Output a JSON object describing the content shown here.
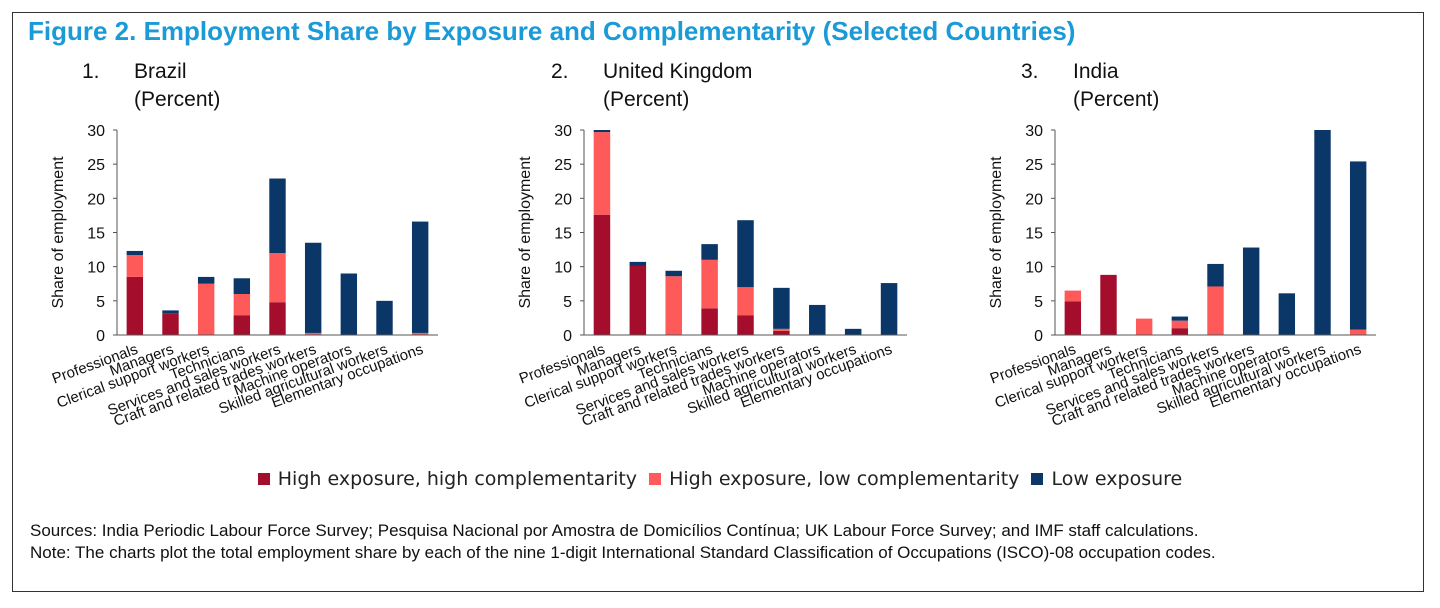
{
  "figure": {
    "title": "Figure 2. Employment Share by Exposure and Complementarity (Selected Countries)",
    "sources": "Sources: India Periodic Labour Force Survey; Pesquisa Nacional por Amostra de Domicílios Contínua; UK Labour Force Survey; and IMF staff calculations.",
    "note": "Note: The charts plot the total employment share by each of the nine 1-digit International Standard Classification of Occupations (ISCO)-08 occupation codes."
  },
  "colors": {
    "high_high": "#a50d2c",
    "high_low": "#ff5a5a",
    "low": "#0b3768"
  },
  "legend": [
    {
      "label": "High exposure, high complementarity",
      "color": "#a50d2c"
    },
    {
      "label": "High exposure, low complementarity",
      "color": "#ff5a5a"
    },
    {
      "label": "Low exposure",
      "color": "#0b3768"
    }
  ],
  "chart_data": [
    {
      "type": "bar",
      "stacked": true,
      "number": "1.",
      "title": "Brazil",
      "subtitle": "(Percent)",
      "ylabel": "Share of employment",
      "ylim": [
        0,
        30
      ],
      "yticks": [
        0,
        5,
        10,
        15,
        20,
        25,
        30
      ],
      "categories": [
        "Professionals",
        "Managers",
        "Clerical support workers",
        "Technicians",
        "Services and sales workers",
        "Craft and related trades workers",
        "Machine operators",
        "Skilled agricultural workers",
        "Elementary occupations"
      ],
      "series": [
        {
          "name": "High exposure, high complementarity",
          "values": [
            8.5,
            3.2,
            0,
            2.9,
            4.8,
            0,
            0,
            0,
            0
          ]
        },
        {
          "name": "High exposure, low complementarity",
          "values": [
            3.2,
            0,
            7.5,
            3.1,
            7.2,
            0.3,
            0,
            0,
            0.3
          ]
        },
        {
          "name": "Low exposure",
          "values": [
            0.6,
            0.4,
            1.0,
            2.3,
            10.9,
            13.2,
            9.0,
            5.0,
            16.3
          ]
        }
      ]
    },
    {
      "type": "bar",
      "stacked": true,
      "number": "2.",
      "title": "United Kingdom",
      "subtitle": "(Percent)",
      "ylabel": "Share of employment",
      "ylim": [
        0,
        30
      ],
      "yticks": [
        0,
        5,
        10,
        15,
        20,
        25,
        30
      ],
      "categories": [
        "Professionals",
        "Managers",
        "Clerical support workers",
        "Technicians",
        "Services and sales workers",
        "Craft and related trades workers",
        "Machine operators",
        "Skilled agricultural workers",
        "Elementary occupations"
      ],
      "series": [
        {
          "name": "High exposure, high complementarity",
          "values": [
            17.6,
            10.1,
            0,
            3.9,
            2.9,
            0.6,
            0,
            0,
            0
          ]
        },
        {
          "name": "High exposure, low complementarity",
          "values": [
            12.1,
            0,
            8.6,
            7.1,
            4.1,
            0.3,
            0,
            0,
            0
          ]
        },
        {
          "name": "Low exposure",
          "values": [
            0.3,
            0.6,
            0.8,
            2.3,
            9.8,
            6.0,
            4.4,
            0.9,
            7.6
          ]
        }
      ]
    },
    {
      "type": "bar",
      "stacked": true,
      "number": "3.",
      "title": "India",
      "subtitle": "(Percent)",
      "ylabel": "Share of employment",
      "ylim": [
        0,
        30
      ],
      "yticks": [
        0,
        5,
        10,
        15,
        20,
        25,
        30
      ],
      "categories": [
        "Professionals",
        "Managers",
        "Clerical support workers",
        "Technicians",
        "Services and sales workers",
        "Craft and related trades workers",
        "Machine operators",
        "Skilled agricultural workers",
        "Elementary occupations"
      ],
      "series": [
        {
          "name": "High exposure, high complementarity",
          "values": [
            4.9,
            8.8,
            0,
            1.0,
            0,
            0,
            0,
            0,
            0
          ]
        },
        {
          "name": "High exposure, low complementarity",
          "values": [
            1.6,
            0,
            2.4,
            1.1,
            7.1,
            0,
            0,
            0,
            0.8
          ]
        },
        {
          "name": "Low exposure",
          "values": [
            0,
            0,
            0,
            0.6,
            3.3,
            12.8,
            6.1,
            30.0,
            24.6
          ]
        }
      ]
    }
  ]
}
